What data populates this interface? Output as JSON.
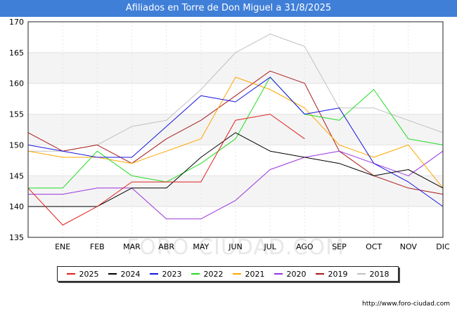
{
  "chart_data": {
    "type": "line",
    "title": "Afiliados en Torre de Don Miguel a 31/8/2025",
    "categories": [
      "",
      "ENE",
      "FEB",
      "MAR",
      "ABR",
      "MAY",
      "JUN",
      "JUL",
      "AGO",
      "SEP",
      "OCT",
      "NOV",
      "DIC"
    ],
    "ylim": [
      135,
      170
    ],
    "yticks": [
      135,
      140,
      145,
      150,
      155,
      160,
      165,
      170
    ],
    "grid": true,
    "legend_position": "bottom",
    "watermark": "FORO-CIUDAD.COM",
    "series": [
      {
        "name": "2025",
        "color": "#e0201e",
        "values": [
          143,
          137,
          140,
          144,
          144,
          144,
          154,
          155,
          151,
          null,
          null,
          null,
          null
        ]
      },
      {
        "name": "2024",
        "color": "#000000",
        "values": [
          140,
          140,
          140,
          143,
          143,
          148,
          152,
          149,
          148,
          147,
          145,
          146,
          143
        ]
      },
      {
        "name": "2023",
        "color": "#1515e0",
        "values": [
          150,
          149,
          148,
          148,
          153,
          158,
          157,
          161,
          155,
          156,
          147,
          144,
          140
        ]
      },
      {
        "name": "2022",
        "color": "#22dd22",
        "values": [
          143,
          143,
          149,
          145,
          144,
          147,
          151,
          161,
          155,
          154,
          159,
          151,
          150
        ]
      },
      {
        "name": "2021",
        "color": "#ffa500",
        "values": [
          149,
          148,
          148,
          147,
          149,
          151,
          161,
          159,
          156,
          150,
          148,
          150,
          143
        ]
      },
      {
        "name": "2020",
        "color": "#9933dd",
        "values": [
          142,
          142,
          143,
          143,
          138,
          138,
          141,
          146,
          148,
          149,
          147,
          145,
          149
        ]
      },
      {
        "name": "2019",
        "color": "#aa1a1a",
        "values": [
          152,
          149,
          150,
          147,
          151,
          154,
          158,
          162,
          160,
          149,
          145,
          143,
          142
        ]
      },
      {
        "name": "2018",
        "color": "#c0c0c0",
        "values": [
          149,
          149,
          150,
          153,
          154,
          159,
          165,
          168,
          166,
          156,
          156,
          154,
          152
        ]
      }
    ]
  },
  "source": "http://www.foro-ciudad.com"
}
